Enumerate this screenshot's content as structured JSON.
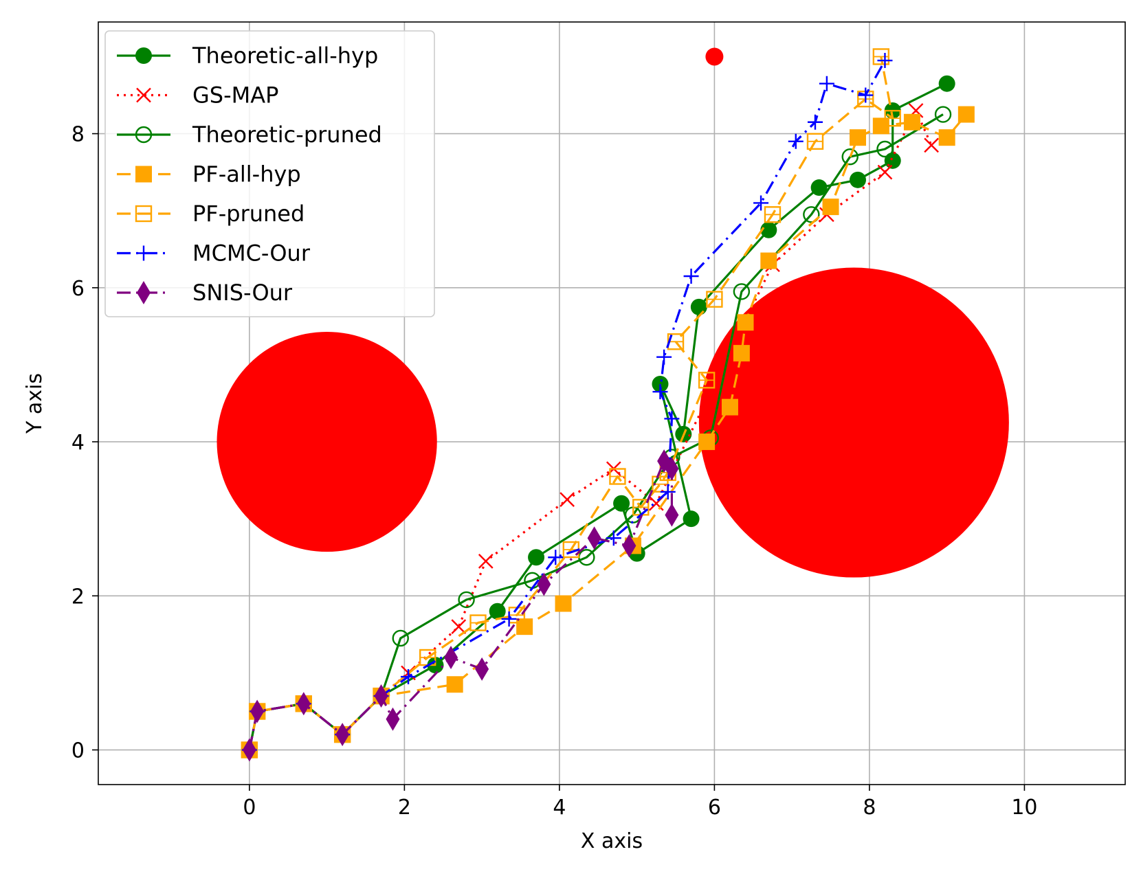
{
  "chart_data": {
    "type": "line",
    "title": "",
    "xlabel": "X axis",
    "ylabel": "Y axis",
    "xlim": [
      -1.95,
      11.3
    ],
    "ylim": [
      -0.45,
      9.45
    ],
    "xticks": [
      0,
      2,
      4,
      6,
      8,
      10
    ],
    "yticks": [
      0,
      2,
      4,
      6,
      8
    ],
    "grid": true,
    "legend_position": "top-left",
    "obstacles": [
      {
        "cx": 1.0,
        "cy": 4.0,
        "r": 1.42,
        "color": "#ff0000"
      },
      {
        "cx": 7.8,
        "cy": 4.25,
        "r": 2.0,
        "color": "#ff0000"
      }
    ],
    "goal": {
      "x": 6.0,
      "y": 9.0,
      "color": "#ff0000"
    },
    "series": [
      {
        "name": "Theoretic-all-hyp",
        "color": "#008000",
        "dash": "solid",
        "marker": "circle-filled",
        "x": [
          0,
          0.1,
          0.7,
          1.2,
          1.7,
          2.4,
          3.2,
          3.7,
          4.8,
          5.0,
          5.7,
          5.3,
          5.6,
          5.8,
          6.7,
          7.35,
          7.85,
          8.3,
          8.3,
          9.0
        ],
        "y": [
          0,
          0.5,
          0.6,
          0.2,
          0.7,
          1.1,
          1.8,
          2.5,
          3.2,
          2.55,
          3.0,
          4.75,
          4.1,
          5.75,
          6.75,
          7.3,
          7.4,
          7.65,
          8.3,
          8.65
        ]
      },
      {
        "name": "GS-MAP",
        "color": "#ff0000",
        "dash": "dotted",
        "marker": "x",
        "x": [
          0,
          0.1,
          0.7,
          1.2,
          1.7,
          2.05,
          2.7,
          3.05,
          4.1,
          4.7,
          5.25,
          6.75,
          7.45,
          8.2,
          8.6,
          8.8
        ],
        "y": [
          0,
          0.5,
          0.6,
          0.2,
          0.7,
          1.0,
          1.6,
          2.45,
          3.25,
          3.65,
          3.2,
          6.3,
          6.95,
          7.5,
          8.3,
          7.85
        ]
      },
      {
        "name": "Theoretic-pruned",
        "color": "#008000",
        "dash": "solid",
        "marker": "circle-open",
        "x": [
          0,
          0.1,
          0.7,
          1.2,
          1.7,
          1.95,
          2.8,
          3.65,
          4.35,
          4.95,
          5.45,
          5.95,
          6.35,
          7.25,
          7.75,
          8.2,
          8.95
        ],
        "y": [
          0,
          0.5,
          0.6,
          0.2,
          0.7,
          1.45,
          1.95,
          2.2,
          2.5,
          3.05,
          3.8,
          4.05,
          5.95,
          6.95,
          7.7,
          7.8,
          8.25
        ]
      },
      {
        "name": "PF-all-hyp",
        "color": "#ffa500",
        "dash": "dashed",
        "marker": "square-filled",
        "x": [
          0,
          0.1,
          0.7,
          1.2,
          1.7,
          2.65,
          3.55,
          4.05,
          4.95,
          5.9,
          6.2,
          6.35,
          6.4,
          6.7,
          7.5,
          7.85,
          8.15,
          8.55,
          9.0,
          9.25
        ],
        "y": [
          0,
          0.5,
          0.6,
          0.2,
          0.7,
          0.85,
          1.6,
          1.9,
          2.65,
          4.0,
          4.45,
          5.15,
          5.55,
          6.35,
          7.05,
          7.95,
          8.1,
          8.15,
          7.95,
          8.25
        ]
      },
      {
        "name": "PF-pruned",
        "color": "#ffa500",
        "dash": "dashed",
        "marker": "square-open",
        "x": [
          0,
          0.1,
          0.7,
          1.2,
          1.7,
          2.3,
          2.95,
          3.45,
          4.15,
          4.75,
          5.05,
          5.3,
          5.4,
          5.9,
          5.5,
          6.0,
          6.75,
          7.3,
          7.95,
          8.3,
          8.15
        ],
        "y": [
          0,
          0.5,
          0.6,
          0.2,
          0.7,
          1.2,
          1.65,
          1.75,
          2.6,
          3.55,
          3.15,
          3.45,
          3.6,
          4.8,
          5.3,
          5.85,
          6.95,
          7.9,
          8.45,
          8.2,
          9.0
        ]
      },
      {
        "name": "MCMC-Our",
        "color": "#0000ff",
        "dash": "dashdot",
        "marker": "plus",
        "x": [
          0,
          0.1,
          0.7,
          1.2,
          1.7,
          2.05,
          3.35,
          3.95,
          4.7,
          5.4,
          5.45,
          5.3,
          5.35,
          5.7,
          6.6,
          7.05,
          7.3,
          7.45,
          7.95,
          8.2
        ],
        "y": [
          0,
          0.5,
          0.6,
          0.2,
          0.7,
          0.95,
          1.7,
          2.5,
          2.75,
          3.35,
          4.3,
          4.65,
          5.1,
          6.15,
          7.1,
          7.9,
          8.15,
          8.65,
          8.5,
          8.95
        ]
      },
      {
        "name": "SNIS-Our",
        "color": "#800080",
        "dash": "dashdot",
        "marker": "diamond-filled",
        "x": [
          0,
          0.1,
          0.7,
          1.2,
          1.7,
          1.85,
          2.6,
          3.0,
          3.8,
          4.45,
          4.9,
          5.35,
          5.45,
          5.45
        ],
        "y": [
          0,
          0.5,
          0.6,
          0.2,
          0.7,
          0.4,
          1.2,
          1.05,
          2.15,
          2.75,
          2.65,
          3.75,
          3.65,
          3.05
        ]
      }
    ]
  }
}
